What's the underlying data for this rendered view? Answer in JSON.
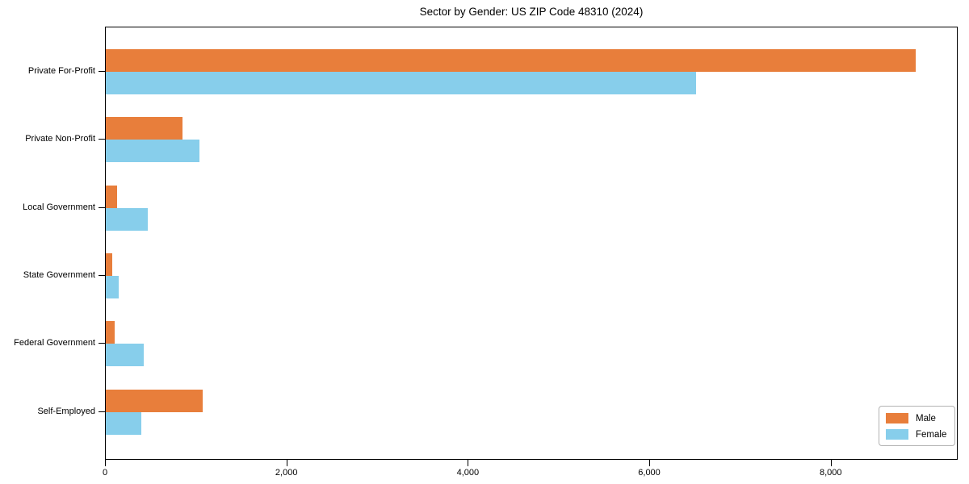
{
  "figure": {
    "background": "#ffffff"
  },
  "chart_data": {
    "type": "bar",
    "orientation": "horizontal",
    "title": "Sector by Gender: US ZIP Code 48310 (2024)",
    "categories": [
      "Private For-Profit",
      "Private Non-Profit",
      "Local Government",
      "State Government",
      "Federal Government",
      "Self-Employed"
    ],
    "series": [
      {
        "name": "Male",
        "color": "#e87e3b",
        "values": [
          8930,
          845,
          125,
          70,
          100,
          1065
        ]
      },
      {
        "name": "Female",
        "color": "#87ceeb",
        "values": [
          6510,
          1030,
          460,
          140,
          420,
          390
        ]
      }
    ],
    "xlabel": "",
    "ylabel": "",
    "xlim": [
      0,
      9400
    ],
    "xticks": [
      0,
      2000,
      4000,
      6000,
      8000
    ],
    "xtick_labels": [
      "0",
      "2,000",
      "4,000",
      "6,000",
      "8,000"
    ],
    "grid": false,
    "legend": {
      "position": "lower right",
      "entries": [
        "Male",
        "Female"
      ]
    }
  }
}
